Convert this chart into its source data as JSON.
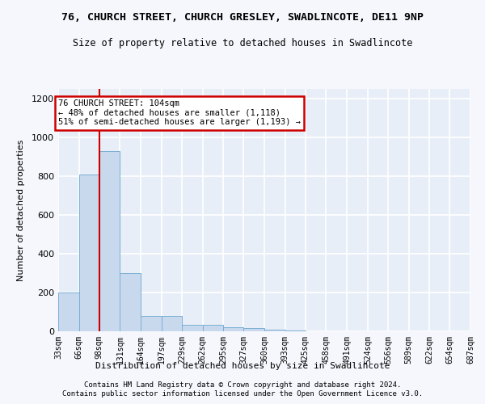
{
  "title": "76, CHURCH STREET, CHURCH GRESLEY, SWADLINCOTE, DE11 9NP",
  "subtitle": "Size of property relative to detached houses in Swadlincote",
  "xlabel": "Distribution of detached houses by size in Swadlincote",
  "ylabel": "Number of detached properties",
  "footnote1": "Contains HM Land Registry data © Crown copyright and database right 2024.",
  "footnote2": "Contains public sector information licensed under the Open Government Licence v3.0.",
  "bin_edges": [
    33,
    66,
    98,
    131,
    164,
    197,
    229,
    262,
    295,
    327,
    360,
    393,
    425,
    458,
    491,
    524,
    556,
    589,
    622,
    654,
    687
  ],
  "bar_heights": [
    200,
    810,
    930,
    300,
    80,
    80,
    35,
    35,
    20,
    15,
    10,
    3,
    2,
    1,
    1,
    1,
    0,
    0,
    0,
    0
  ],
  "bar_color": "#c8d9ee",
  "bar_edge_color": "#7bafd4",
  "background_color": "#e8eef7",
  "figure_background": "#f5f7fc",
  "grid_color": "#ffffff",
  "property_line_x": 98,
  "annotation_text": "76 CHURCH STREET: 104sqm\n← 48% of detached houses are smaller (1,118)\n51% of semi-detached houses are larger (1,193) →",
  "annotation_box_color": "#ffffff",
  "annotation_border_color": "#cc0000",
  "property_line_color": "#cc0000",
  "ylim": [
    0,
    1250
  ],
  "yticks": [
    0,
    200,
    400,
    600,
    800,
    1000,
    1200
  ],
  "tick_labels": [
    "33sqm",
    "66sqm",
    "98sqm",
    "131sqm",
    "164sqm",
    "197sqm",
    "229sqm",
    "262sqm",
    "295sqm",
    "327sqm",
    "360sqm",
    "393sqm",
    "425sqm",
    "458sqm",
    "491sqm",
    "524sqm",
    "556sqm",
    "589sqm",
    "622sqm",
    "654sqm",
    "687sqm"
  ]
}
